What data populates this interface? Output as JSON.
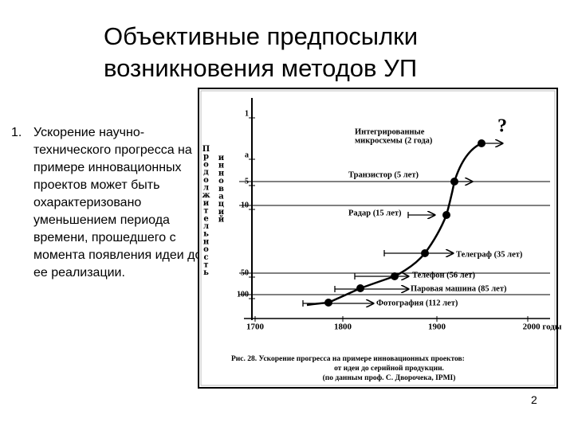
{
  "title": [
    "Объективные предпосылки",
    "возникновения методов УП"
  ],
  "list": [
    {
      "number": "1.",
      "text": "Ускорение научно-технического прогресса на примере инновационных проектов может быть охарактеризовано уменьшением периода времени, прошедшего с момента появления идеи до ее реализации."
    }
  ],
  "figure": {
    "y_axis_title": [
      "Продолжительность",
      "инноваций"
    ],
    "y_ticks": [
      "1",
      "a",
      "5",
      "10",
      "50",
      "100"
    ],
    "x_ticks": [
      "1700",
      "1800",
      "1900",
      "2000 годы"
    ],
    "question": "?",
    "innovations": [
      {
        "lines": [
          "Интегрированные",
          "микросхемы (2 года)"
        ]
      },
      {
        "lines": [
          "Транзистор (5 лет)"
        ]
      },
      {
        "lines": [
          "Радар (15 лет)"
        ]
      },
      {
        "lines": [
          "Телеграф (35 лет)"
        ]
      },
      {
        "lines": [
          "Телефон (56 лет)"
        ]
      },
      {
        "lines": [
          "Паровая машина (85 лет)"
        ]
      },
      {
        "lines": [
          "Фотография (112 лет)"
        ]
      }
    ],
    "caption": [
      "Рис. 28. Ускорение прогресса на примере инновационных проектов:",
      "от идеи до серийной продукции.",
      "(по данным проф. С. Дворочека, IPMI)"
    ]
  },
  "page_number": "2"
}
